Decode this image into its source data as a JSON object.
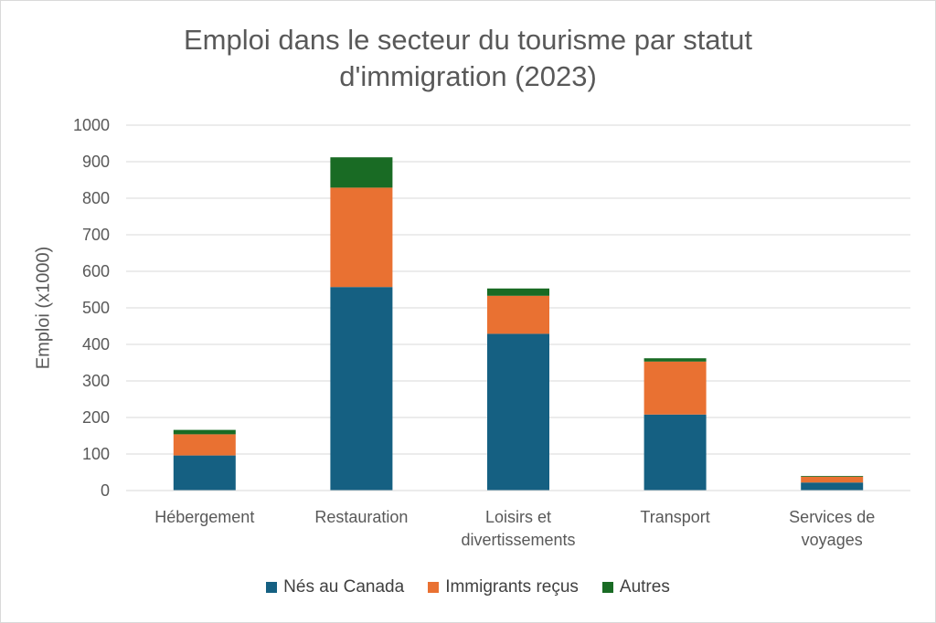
{
  "chart_data": {
    "type": "bar",
    "stacked": true,
    "title": "Emploi dans le secteur du tourisme par statut d'immigration (2023)",
    "title_lines": [
      "Emploi dans le secteur du tourisme par statut",
      "d'immigration (2023)"
    ],
    "xlabel": "",
    "ylabel": "Emploi (x1000)",
    "ylim": [
      0,
      1000
    ],
    "yticks": [
      0,
      100,
      200,
      300,
      400,
      500,
      600,
      700,
      800,
      900,
      1000
    ],
    "grid": true,
    "legend_position": "bottom",
    "categories": [
      [
        "Hébergement"
      ],
      [
        "Restauration"
      ],
      [
        "Loisirs et",
        "divertissements"
      ],
      [
        "Transport"
      ],
      [
        "Services de",
        "voyages"
      ]
    ],
    "series": [
      {
        "name": "Nés au Canada",
        "color": "#156082",
        "values": [
          96,
          557,
          429,
          208,
          22
        ]
      },
      {
        "name": "Immigrants reçus",
        "color": "#e97132",
        "values": [
          58,
          272,
          104,
          145,
          16
        ]
      },
      {
        "name": "Autres",
        "color": "#196b24",
        "values": [
          12,
          83,
          20,
          9,
          2
        ]
      }
    ]
  }
}
